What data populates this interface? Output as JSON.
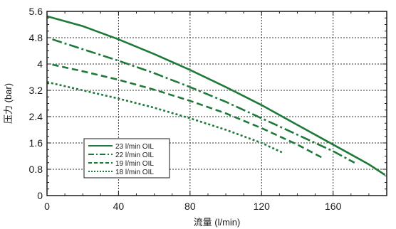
{
  "chart_data": {
    "type": "line",
    "xlabel": "流量 (l/min)",
    "ylabel": "压力 (bar)",
    "xlim": [
      0,
      190
    ],
    "ylim": [
      0,
      5.6
    ],
    "xticks": [
      0,
      40,
      80,
      120,
      160
    ],
    "yticks": [
      0,
      0.8,
      1.6,
      2.4,
      3.2,
      4,
      4.8,
      5.6
    ],
    "xtick_labels": [
      "0",
      "40",
      "80",
      "120",
      "160"
    ],
    "ytick_labels": [
      "0",
      "0.8",
      "1.6",
      "2.4",
      "3.2",
      "4",
      "4.8",
      "5.6"
    ],
    "x_minor_step": 10,
    "y_minor_step": 0.2,
    "grid": true,
    "legend_position": "bottom-left",
    "series": [
      {
        "name": "23 l/min OIL",
        "color": "#1f7a3a",
        "style": "solid",
        "points": [
          [
            0,
            5.45
          ],
          [
            20,
            5.15
          ],
          [
            40,
            4.75
          ],
          [
            60,
            4.3
          ],
          [
            80,
            3.82
          ],
          [
            100,
            3.3
          ],
          [
            120,
            2.75
          ],
          [
            140,
            2.15
          ],
          [
            160,
            1.55
          ],
          [
            180,
            0.95
          ],
          [
            189,
            0.63
          ]
        ]
      },
      {
        "name": "22 l/min OIL",
        "color": "#1f7a3a",
        "style": "dashdot",
        "points": [
          [
            3,
            4.75
          ],
          [
            20,
            4.45
          ],
          [
            40,
            4.1
          ],
          [
            60,
            3.72
          ],
          [
            80,
            3.3
          ],
          [
            100,
            2.85
          ],
          [
            120,
            2.35
          ],
          [
            140,
            1.85
          ],
          [
            160,
            1.35
          ],
          [
            172,
            1.0
          ]
        ]
      },
      {
        "name": "19 l/min OIL",
        "color": "#1f7a3a",
        "style": "dashed",
        "points": [
          [
            3,
            3.98
          ],
          [
            20,
            3.78
          ],
          [
            40,
            3.52
          ],
          [
            60,
            3.22
          ],
          [
            80,
            2.88
          ],
          [
            100,
            2.5
          ],
          [
            120,
            2.05
          ],
          [
            140,
            1.55
          ],
          [
            155,
            1.12
          ]
        ]
      },
      {
        "name": "18 l/min OIL",
        "color": "#1f7a3a",
        "style": "dotted",
        "points": [
          [
            0,
            3.45
          ],
          [
            20,
            3.2
          ],
          [
            40,
            2.95
          ],
          [
            60,
            2.67
          ],
          [
            80,
            2.35
          ],
          [
            100,
            2.0
          ],
          [
            120,
            1.6
          ],
          [
            132,
            1.3
          ]
        ]
      }
    ]
  }
}
